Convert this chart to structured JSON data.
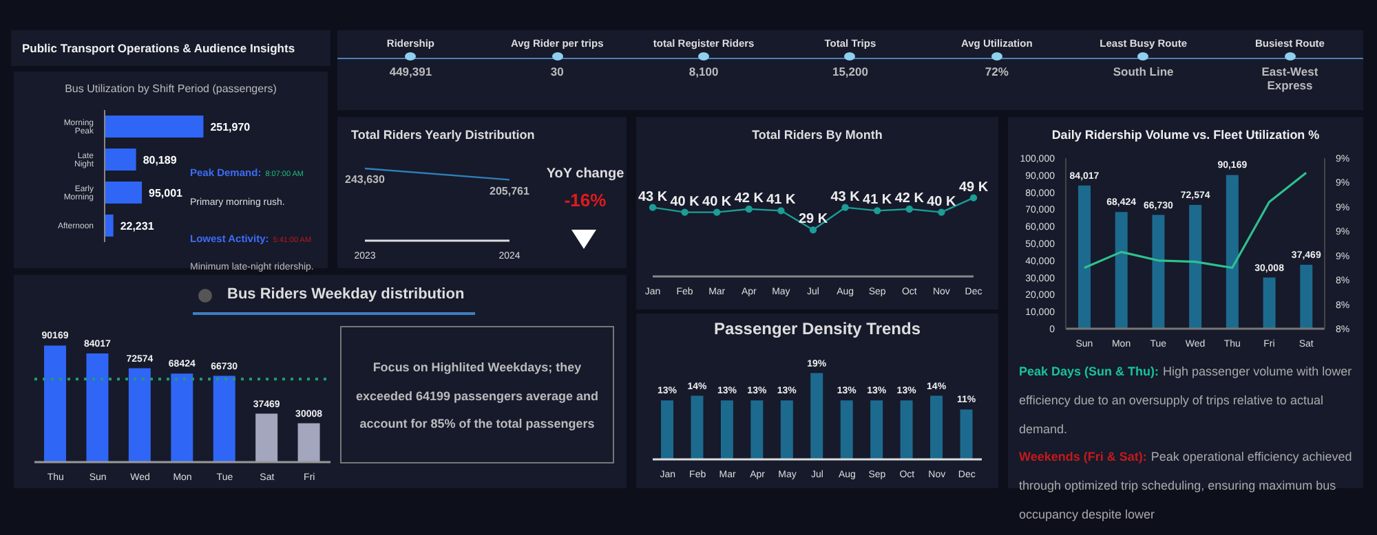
{
  "chart_data": [
    {
      "type": "other",
      "title": "Public Transport Operations & Audience Insights",
      "annotations": [
        "Ridership",
        "449,391",
        "Avg Rider per trips",
        "30",
        "total Register Riders",
        "8,100",
        "Total Trips",
        "15,200",
        "Avg Utilization",
        "72%",
        "Least Busy Route",
        "South Line",
        "Busiest Route",
        "East-West Express"
      ]
    },
    {
      "type": "bar",
      "orientation": "horizontal",
      "title": "Bus Utilization by Shift Period (passengers)",
      "categories": [
        "Morning Peak",
        "Late Night",
        "Early Morning",
        "Afternoon"
      ],
      "values": [
        251970,
        80189,
        95001,
        22231
      ],
      "color": "#2f66f5",
      "value_labels": [
        "251,970",
        "80,189",
        "95,001",
        "22,231"
      ],
      "annotations": [
        "Peak Demand:",
        "8:07:00 AM",
        "Primary morning rush.",
        "Lowest Activity:",
        "5:41:00 AM",
        "Minimum late-night ridership."
      ]
    },
    {
      "type": "line",
      "title": "Total Riders Yearly Distribution",
      "categories": [
        "2023",
        "2024"
      ],
      "values": [
        243630,
        205761
      ],
      "color": "#2f7fb8",
      "value_labels": [
        "243,630",
        "205,761"
      ],
      "annotations": [
        "YoY change",
        "-16%"
      ]
    },
    {
      "type": "line",
      "title": "Total Riders By Month",
      "categories": [
        "Jan",
        "Feb",
        "Mar",
        "Apr",
        "May",
        "Jul",
        "Aug",
        "Sep",
        "Oct",
        "Nov",
        "Dec"
      ],
      "values": [
        43,
        40,
        40,
        42,
        41,
        29,
        43,
        41,
        42,
        40,
        49
      ],
      "color": "#1a9e96",
      "marker": "circle",
      "value_labels": [
        "43 K",
        "40 K",
        "40 K",
        "42 K",
        "41 K",
        "29 K",
        "43 K",
        "41 K",
        "42 K",
        "40 K",
        "49 K"
      ]
    },
    {
      "type": "bar",
      "title": "Passenger Density Trends",
      "categories": [
        "Jan",
        "Feb",
        "Mar",
        "Apr",
        "May",
        "Jul",
        "Aug",
        "Sep",
        "Oct",
        "Nov",
        "Dec"
      ],
      "values": [
        13,
        14,
        13,
        13,
        13,
        19,
        13,
        13,
        13,
        14,
        11
      ],
      "color": "#1d6a8f",
      "value_labels": [
        "13%",
        "14%",
        "13%",
        "13%",
        "13%",
        "19%",
        "13%",
        "13%",
        "13%",
        "14%",
        "11%"
      ]
    },
    {
      "type": "bar",
      "title": "Daily Ridership Volume vs. Fleet Utilization %",
      "categories": [
        "Sun",
        "Mon",
        "Tue",
        "Wed",
        "Thu",
        "Fri",
        "Sat"
      ],
      "series": [
        {
          "type": "bar",
          "color": "#1d6a8f",
          "values": [
            84017,
            68424,
            66730,
            72574,
            90169,
            30008,
            37469
          ],
          "value_labels": [
            "84,017",
            "68,424",
            "66,730",
            "72,574",
            "90,169",
            "30,008",
            "37,469"
          ]
        },
        {
          "type": "line",
          "axis": "y2",
          "color": "#2fc08f",
          "values": [
            8.5,
            8.63,
            8.56,
            8.55,
            8.5,
            9.04,
            9.28
          ]
        }
      ],
      "ylim": [
        0,
        100000
      ],
      "yticks": [
        0,
        {
          "value": 10000,
          "label": "10,000"
        },
        {
          "value": 20000,
          "label": "20,000"
        },
        {
          "value": 30000,
          "label": "30,000"
        },
        {
          "value": 40000,
          "label": "40,000"
        },
        {
          "value": 50000,
          "label": "50,000"
        },
        {
          "value": 60000,
          "label": "60,000"
        },
        {
          "value": 70000,
          "label": "70,000"
        },
        {
          "value": 80000,
          "label": "80,000"
        },
        {
          "value": 90000,
          "label": "90,000"
        },
        {
          "value": 100000,
          "label": "100,000"
        }
      ],
      "y2lim": [
        8.0,
        9.4
      ],
      "y2ticks": [
        {
          "value": 8.0,
          "label": "8%"
        },
        {
          "value": 8.2,
          "label": "8%"
        },
        {
          "value": 8.4,
          "label": "8%"
        },
        {
          "value": 8.6,
          "label": "9%"
        },
        {
          "value": 8.8,
          "label": "9%"
        },
        {
          "value": 9.0,
          "label": "9%"
        },
        {
          "value": 9.2,
          "label": "9%"
        },
        {
          "value": 9.4,
          "label": "9%"
        }
      ],
      "annotations": [
        "Peak Days (Sun & Thu):",
        "High passenger volume with lower efficiency due to an oversupply of trips relative to actual demand.",
        "Weekends (Fri & Sat):",
        "Peak operational efficiency achieved through optimized trip scheduling, ensuring maximum bus occupancy despite lower"
      ]
    },
    {
      "type": "bar",
      "title": "Bus Riders Weekday distribution",
      "categories": [
        "Thu",
        "Sun",
        "Wed",
        "Mon",
        "Tue",
        "Sat",
        "Fri"
      ],
      "values": [
        90169,
        84017,
        72574,
        68424,
        66730,
        37469,
        30008
      ],
      "colors": [
        "#2f66f5",
        "#2f66f5",
        "#2f66f5",
        "#2f66f5",
        "#2f66f5",
        "#a3a6bd",
        "#a3a6bd"
      ],
      "data_labels": true,
      "ref_lines": [
        {
          "axis": "y",
          "value": 64199,
          "color": "#1f9e6e",
          "line_style": "dotted"
        }
      ],
      "annotations": [
        "Focus on Highlited Weekdays; they exceeded 64199 passengers average and  account for 85% of the total passengers"
      ]
    }
  ]
}
